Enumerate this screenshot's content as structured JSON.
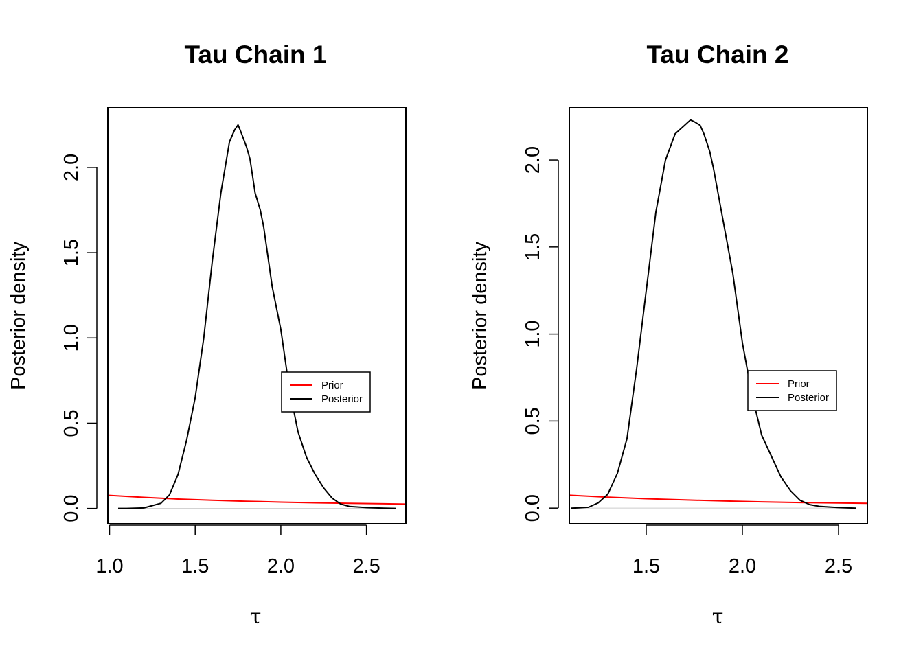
{
  "chart_data": [
    {
      "type": "line",
      "title": "Tau Chain 1",
      "xlabel": "τ",
      "ylabel": "Posterior density",
      "xlim": [
        0.99,
        2.73
      ],
      "ylim": [
        -0.09,
        2.35
      ],
      "xticks": [
        "1.0",
        "1.5",
        "2.0",
        "2.5"
      ],
      "yticks": [
        "0.0",
        "0.5",
        "1.0",
        "1.5",
        "2.0"
      ],
      "grid": false,
      "legend": {
        "position": "right",
        "entries": [
          "Prior",
          "Posterior"
        ]
      },
      "series": [
        {
          "name": "Prior",
          "color": "#ff0000",
          "x": [
            0.99,
            1.2,
            1.4,
            1.6,
            1.8,
            2.0,
            2.2,
            2.4,
            2.6,
            2.73
          ],
          "y": [
            0.077,
            0.065,
            0.055,
            0.048,
            0.042,
            0.037,
            0.033,
            0.03,
            0.027,
            0.025
          ]
        },
        {
          "name": "Posterior",
          "color": "#000000",
          "x": [
            1.05,
            1.1,
            1.2,
            1.3,
            1.35,
            1.4,
            1.45,
            1.5,
            1.55,
            1.6,
            1.65,
            1.7,
            1.73,
            1.75,
            1.77,
            1.8,
            1.82,
            1.85,
            1.88,
            1.9,
            1.95,
            2.0,
            2.05,
            2.1,
            2.15,
            2.2,
            2.25,
            2.3,
            2.35,
            2.4,
            2.5,
            2.6,
            2.67
          ],
          "y": [
            0.0,
            0.0,
            0.003,
            0.03,
            0.08,
            0.2,
            0.4,
            0.65,
            1.0,
            1.45,
            1.85,
            2.15,
            2.22,
            2.25,
            2.2,
            2.12,
            2.05,
            1.85,
            1.75,
            1.65,
            1.3,
            1.05,
            0.7,
            0.45,
            0.3,
            0.2,
            0.12,
            0.06,
            0.025,
            0.012,
            0.005,
            0.002,
            0.0
          ]
        }
      ]
    },
    {
      "type": "line",
      "title": "Tau Chain 2",
      "xlabel": "τ",
      "ylabel": "Posterior density",
      "xlim": [
        1.1,
        2.65
      ],
      "ylim": [
        -0.09,
        2.3
      ],
      "xticks": [
        "1.5",
        "2.0",
        "2.5"
      ],
      "yticks": [
        "0.0",
        "0.5",
        "1.0",
        "1.5",
        "2.0"
      ],
      "grid": false,
      "legend": {
        "position": "right",
        "entries": [
          "Prior",
          "Posterior"
        ]
      },
      "series": [
        {
          "name": "Prior",
          "color": "#ff0000",
          "x": [
            1.1,
            1.3,
            1.5,
            1.7,
            1.9,
            2.1,
            2.3,
            2.5,
            2.65
          ],
          "y": [
            0.074,
            0.063,
            0.054,
            0.047,
            0.041,
            0.036,
            0.032,
            0.029,
            0.027
          ]
        },
        {
          "name": "Posterior",
          "color": "#000000",
          "x": [
            1.11,
            1.15,
            1.2,
            1.25,
            1.3,
            1.35,
            1.4,
            1.45,
            1.5,
            1.55,
            1.6,
            1.65,
            1.7,
            1.73,
            1.75,
            1.78,
            1.8,
            1.83,
            1.85,
            1.9,
            1.95,
            2.0,
            2.05,
            2.1,
            2.15,
            2.2,
            2.25,
            2.3,
            2.35,
            2.4,
            2.5,
            2.59
          ],
          "y": [
            0.0,
            0.002,
            0.005,
            0.03,
            0.08,
            0.2,
            0.4,
            0.8,
            1.25,
            1.7,
            2.0,
            2.15,
            2.2,
            2.23,
            2.22,
            2.2,
            2.15,
            2.05,
            1.95,
            1.65,
            1.35,
            0.95,
            0.65,
            0.42,
            0.3,
            0.18,
            0.1,
            0.045,
            0.02,
            0.01,
            0.003,
            0.0
          ]
        }
      ]
    }
  ]
}
